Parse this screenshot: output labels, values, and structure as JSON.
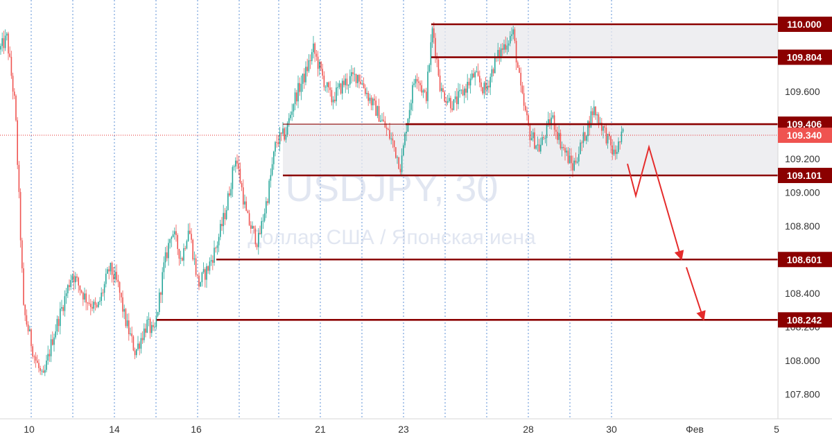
{
  "watermark": {
    "symbol": "USDJPY, 30",
    "description": "Доллар США / Японская иена"
  },
  "chart_data": {
    "type": "candlestick",
    "symbol": "USDJPY",
    "timeframe": "30",
    "ylim": [
      107.7,
      110.1
    ],
    "grid": "vertical dotted lines",
    "y_ticks": [
      "110.000",
      "109.600",
      "109.200",
      "109.000",
      "108.800",
      "108.400",
      "108.200",
      "108.000",
      "107.800"
    ],
    "x_ticks": [
      "10",
      "14",
      "16",
      "21",
      "23",
      "28",
      "30",
      "Фев",
      "5"
    ],
    "current_price": "109.340",
    "levels": [
      {
        "value": 110.0,
        "label": "110.000"
      },
      {
        "value": 109.804,
        "label": "109.804"
      },
      {
        "value": 109.406,
        "label": "109.406"
      },
      {
        "value": 109.101,
        "label": "109.101"
      },
      {
        "value": 108.601,
        "label": "108.601"
      },
      {
        "value": 108.242,
        "label": "108.242"
      }
    ],
    "zones": [
      {
        "from": 109.804,
        "to": 110.0
      },
      {
        "from": 109.101,
        "to": 109.406
      }
    ],
    "price_path": [
      [
        0,
        109.85
      ],
      [
        10,
        109.92
      ],
      [
        22,
        109.5
      ],
      [
        34,
        108.3
      ],
      [
        50,
        108.02
      ],
      [
        62,
        107.88
      ],
      [
        75,
        108.12
      ],
      [
        92,
        108.35
      ],
      [
        104,
        108.52
      ],
      [
        122,
        108.38
      ],
      [
        140,
        108.3
      ],
      [
        158,
        108.55
      ],
      [
        170,
        108.45
      ],
      [
        180,
        108.25
      ],
      [
        195,
        108.05
      ],
      [
        212,
        108.22
      ],
      [
        222,
        108.15
      ],
      [
        236,
        108.55
      ],
      [
        248,
        108.78
      ],
      [
        262,
        108.6
      ],
      [
        272,
        108.8
      ],
      [
        286,
        108.45
      ],
      [
        300,
        108.55
      ],
      [
        312,
        108.68
      ],
      [
        326,
        108.9
      ],
      [
        340,
        109.22
      ],
      [
        356,
        108.85
      ],
      [
        372,
        108.7
      ],
      [
        386,
        108.98
      ],
      [
        398,
        109.3
      ],
      [
        412,
        109.35
      ],
      [
        424,
        109.55
      ],
      [
        440,
        109.7
      ],
      [
        452,
        109.85
      ],
      [
        464,
        109.7
      ],
      [
        478,
        109.55
      ],
      [
        496,
        109.65
      ],
      [
        516,
        109.7
      ],
      [
        534,
        109.55
      ],
      [
        548,
        109.45
      ],
      [
        566,
        109.3
      ],
      [
        578,
        109.15
      ],
      [
        588,
        109.45
      ],
      [
        600,
        109.72
      ],
      [
        614,
        109.55
      ],
      [
        624,
        109.98
      ],
      [
        636,
        109.6
      ],
      [
        654,
        109.52
      ],
      [
        668,
        109.6
      ],
      [
        684,
        109.7
      ],
      [
        700,
        109.6
      ],
      [
        714,
        109.78
      ],
      [
        728,
        109.88
      ],
      [
        740,
        109.95
      ],
      [
        752,
        109.58
      ],
      [
        764,
        109.35
      ],
      [
        778,
        109.26
      ],
      [
        796,
        109.45
      ],
      [
        810,
        109.28
      ],
      [
        826,
        109.15
      ],
      [
        840,
        109.3
      ],
      [
        856,
        109.5
      ],
      [
        870,
        109.38
      ],
      [
        886,
        109.22
      ],
      [
        900,
        109.36
      ]
    ],
    "projection": [
      [
        905,
        109.17
      ],
      [
        917,
        108.98
      ],
      [
        936,
        109.27
      ],
      [
        983,
        108.601
      ]
    ],
    "projection2": [
      [
        990,
        108.555
      ],
      [
        1015,
        108.242
      ]
    ]
  }
}
